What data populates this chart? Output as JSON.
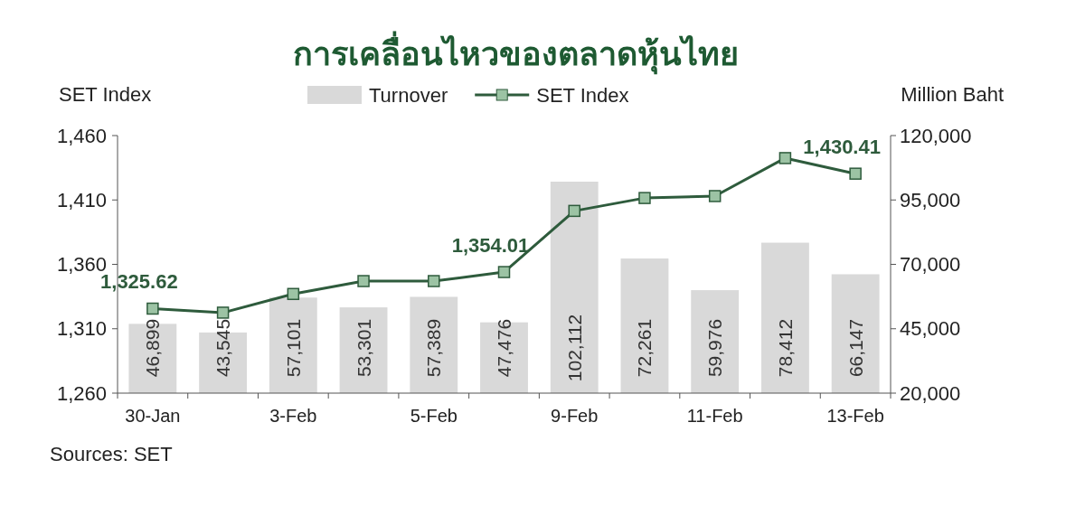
{
  "chart_data": {
    "type": "bar",
    "title": "การเคลื่อนไหวของตลาดหุ้นไทย",
    "ylabel": "SET Index",
    "y2label": "Million Baht",
    "annotations": [
      "Sources: SET"
    ],
    "categories": [
      "30-Jan",
      null,
      "3-Feb",
      null,
      "5-Feb",
      null,
      "9-Feb",
      null,
      "11-Feb",
      null,
      "13-Feb"
    ],
    "series": [
      {
        "name": "Turnover",
        "axis": "y2",
        "color": "#d9d9d9",
        "values": [
          46899,
          43545,
          57101,
          53301,
          57389,
          47476,
          102112,
          72261,
          59976,
          78412,
          66147
        ],
        "value_labels": [
          "46,899",
          "43,545",
          "57,101",
          "53,301",
          "57,389",
          "47,476",
          "102,112",
          "72,261",
          "59,976",
          "78,412",
          "66,147"
        ]
      },
      {
        "name": "SET Index",
        "type": "line",
        "color": "#2e5b3c",
        "marker": "square",
        "values": [
          1325.62,
          1322.5,
          1337,
          1347,
          1347,
          1354.01,
          1401.5,
          1411.5,
          1413,
          1442.5,
          1430.41
        ],
        "value_labels": [
          "1,325.62",
          null,
          null,
          null,
          null,
          "1,354.01",
          null,
          null,
          null,
          null,
          "1,430.41"
        ]
      }
    ],
    "ylim": [
      1260,
      1460
    ],
    "yticks": [
      {
        "value": 1260,
        "label": "1,260"
      },
      {
        "value": 1310,
        "label": "1,310"
      },
      {
        "value": 1360,
        "label": "1,360"
      },
      {
        "value": 1410,
        "label": "1,410"
      },
      {
        "value": 1460,
        "label": "1,460"
      }
    ],
    "y2lim": [
      20000,
      120000
    ],
    "y2ticks": [
      {
        "value": 20000,
        "label": "20,000"
      },
      {
        "value": 45000,
        "label": "45,000"
      },
      {
        "value": 70000,
        "label": "70,000"
      },
      {
        "value": 95000,
        "label": "95,000"
      },
      {
        "value": 120000,
        "label": "120,000"
      }
    ],
    "legend": "top",
    "grid": false
  }
}
